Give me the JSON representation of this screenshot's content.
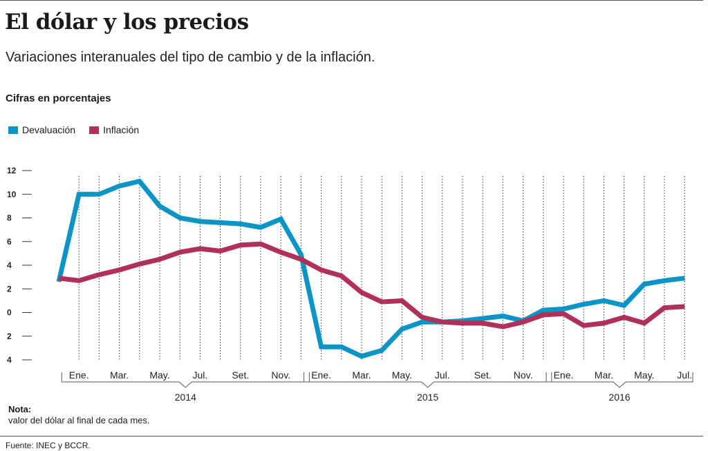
{
  "header": {
    "title": "El dólar y los precios",
    "subtitle": "Variaciones interanuales del tipo de cambio y de la inflación.",
    "units_label": "Cifras en porcentajes"
  },
  "footer": {
    "note_label": "Nota:",
    "note_text": "valor del dólar al final de cada mes.",
    "source": "Fuente: INEC y BCCR."
  },
  "chart_data": {
    "type": "line",
    "title": "El dólar y los precios",
    "ylabel": "",
    "xlabel": "",
    "ylim": [
      -4,
      12
    ],
    "y_ticks": [
      12,
      10,
      8,
      6,
      4,
      2,
      0,
      -2,
      -4
    ],
    "y_tick_labels": [
      "12",
      "10",
      "8",
      "6",
      "4",
      "2",
      "0",
      "2",
      "4"
    ],
    "grid": "vertical dotted lines at each month",
    "legend_position": "top-left",
    "x": [
      "2013-12",
      "2014-01",
      "2014-02",
      "2014-03",
      "2014-04",
      "2014-05",
      "2014-06",
      "2014-07",
      "2014-08",
      "2014-09",
      "2014-10",
      "2014-11",
      "2014-12",
      "2015-01",
      "2015-02",
      "2015-03",
      "2015-04",
      "2015-05",
      "2015-06",
      "2015-07",
      "2015-08",
      "2015-09",
      "2015-10",
      "2015-11",
      "2015-12",
      "2016-01",
      "2016-02",
      "2016-03",
      "2016-04",
      "2016-05",
      "2016-06",
      "2016-07",
      "2016-08"
    ],
    "month_labels": [
      {
        "x": "2014-01",
        "label": "Ene."
      },
      {
        "x": "2014-03",
        "label": "Mar."
      },
      {
        "x": "2014-05",
        "label": "May."
      },
      {
        "x": "2014-07",
        "label": "Jul."
      },
      {
        "x": "2014-09",
        "label": "Set."
      },
      {
        "x": "2014-11",
        "label": "Nov."
      },
      {
        "x": "2015-01",
        "label": "Ene."
      },
      {
        "x": "2015-03",
        "label": "Mar."
      },
      {
        "x": "2015-05",
        "label": "May."
      },
      {
        "x": "2015-07",
        "label": "Jul."
      },
      {
        "x": "2015-09",
        "label": "Set."
      },
      {
        "x": "2015-11",
        "label": "Nov."
      },
      {
        "x": "2016-01",
        "label": "Ene."
      },
      {
        "x": "2016-03",
        "label": "Mar."
      },
      {
        "x": "2016-05",
        "label": "May."
      },
      {
        "x": "2016-07",
        "label": "Jul."
      }
    ],
    "year_labels": [
      {
        "label": "2014",
        "from": "2014-01",
        "to": "2014-12"
      },
      {
        "label": "2015",
        "from": "2015-01",
        "to": "2015-12"
      },
      {
        "label": "2016",
        "from": "2016-01",
        "to": "2016-08"
      }
    ],
    "series": [
      {
        "name": "Devaluación",
        "color": "#0a95c6",
        "values": [
          2.6,
          10.0,
          10.0,
          10.7,
          11.1,
          9.0,
          8.0,
          7.7,
          7.6,
          7.5,
          7.2,
          7.9,
          4.9,
          -2.9,
          -2.9,
          -3.7,
          -3.2,
          -1.4,
          -0.8,
          -0.8,
          -0.7,
          -0.5,
          -0.3,
          -0.7,
          0.2,
          0.3,
          0.7,
          1.0,
          0.6,
          2.4,
          2.7,
          2.9,
          null
        ]
      },
      {
        "name": "Inflación",
        "color": "#b0305a",
        "values": [
          2.9,
          2.7,
          3.2,
          3.6,
          4.1,
          4.5,
          5.1,
          5.4,
          5.2,
          5.7,
          5.8,
          5.1,
          4.5,
          3.6,
          3.1,
          1.7,
          0.9,
          1.0,
          -0.4,
          -0.8,
          -0.9,
          -0.9,
          -1.2,
          -0.8,
          -0.2,
          -0.1,
          -1.1,
          -0.9,
          -0.4,
          -0.9,
          0.4,
          0.5,
          null
        ]
      }
    ]
  }
}
